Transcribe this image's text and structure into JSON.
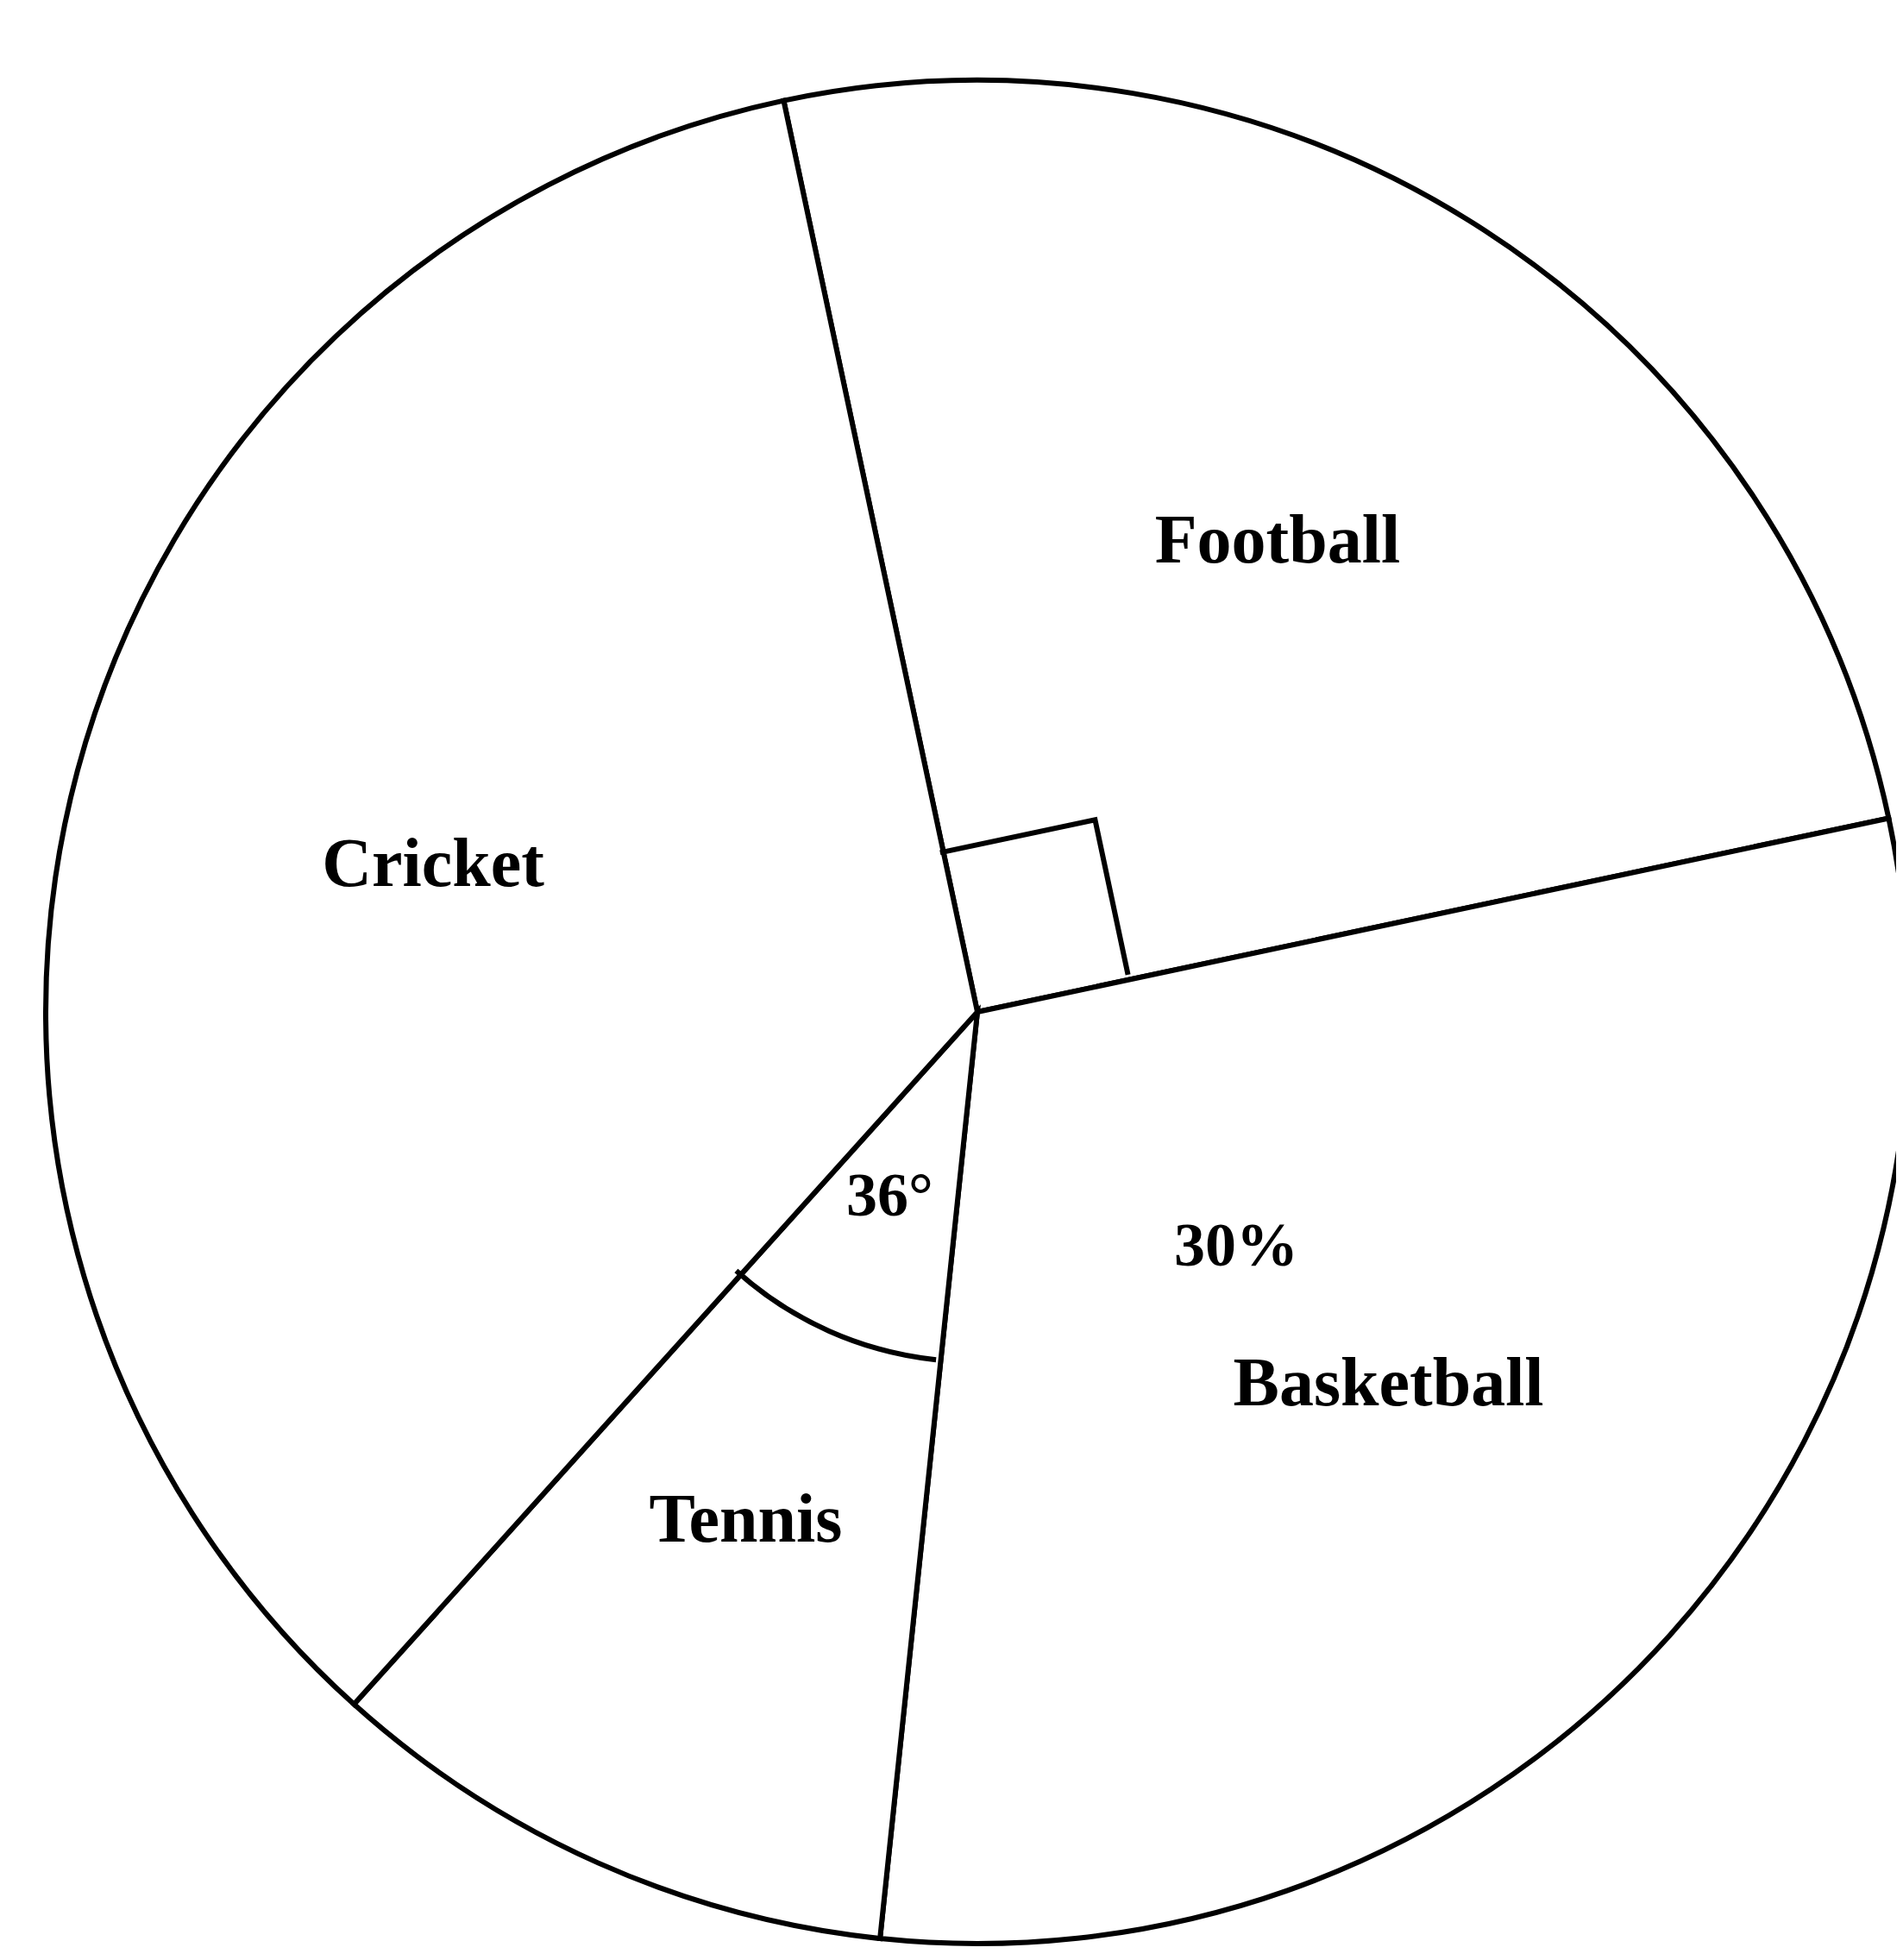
{
  "chart_data": {
    "type": "pie",
    "categories": [
      "Football",
      "Basketball",
      "Tennis",
      "Cricket"
    ],
    "values": [
      25,
      30,
      10,
      35
    ],
    "colors": [
      "#ffffff",
      "#ffffff",
      "#ffffff",
      "#ffffff"
    ],
    "value_labels": [
      null,
      "30%",
      null,
      null
    ],
    "annotations": [
      "36°"
    ]
  }
}
